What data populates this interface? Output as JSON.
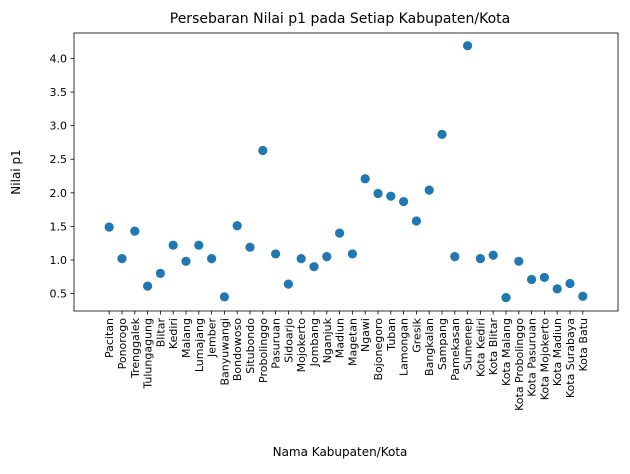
{
  "chart_data": {
    "type": "scatter",
    "title": "Persebaran Nilai p1 pada Setiap Kabupaten/Kota",
    "xlabel": "Nama Kabupaten/Kota",
    "ylabel": "Nilai p1",
    "ylim": [
      0.24,
      4.38
    ],
    "yticks": [
      "0.5",
      "1.0",
      "1.5",
      "2.0",
      "2.5",
      "3.0",
      "3.5",
      "4.0"
    ],
    "grid": false,
    "marker_color": "#1f77b4",
    "categories": [
      "Pacitan",
      "Ponorogo",
      "Trenggalek",
      "Tulungagung",
      "Blitar",
      "Kediri",
      "Malang",
      "Lumajang",
      "Jember",
      "Banyuwangi",
      "Bondowoso",
      "Situbondo",
      "Probolinggo",
      "Pasuruan",
      "Sidoarjo",
      "Mojokerto",
      "Jombang",
      "Nganjuk",
      "Madiun",
      "Magetan",
      "Ngawi",
      "Bojonegoro",
      "Tuban",
      "Lamongan",
      "Gresik",
      "Bangkalan",
      "Sampang",
      "Pamekasan",
      "Sumenep",
      "Kota Kediri",
      "Kota Blitar",
      "Kota Malang",
      "Kota Probolinggo",
      "Kota Pasuruan",
      "Kota Mojokerto",
      "Kota Madiun",
      "Kota Surabaya",
      "Kota Batu"
    ],
    "values": [
      1.49,
      1.02,
      1.43,
      0.61,
      0.8,
      1.22,
      0.98,
      1.22,
      1.02,
      0.45,
      1.51,
      1.19,
      2.63,
      1.09,
      0.64,
      1.02,
      0.9,
      1.05,
      1.4,
      1.09,
      2.21,
      1.99,
      1.95,
      1.87,
      1.58,
      2.04,
      2.87,
      1.05,
      4.19,
      1.02,
      1.07,
      0.44,
      0.98,
      0.71,
      0.74,
      0.57,
      0.65,
      0.46
    ]
  }
}
